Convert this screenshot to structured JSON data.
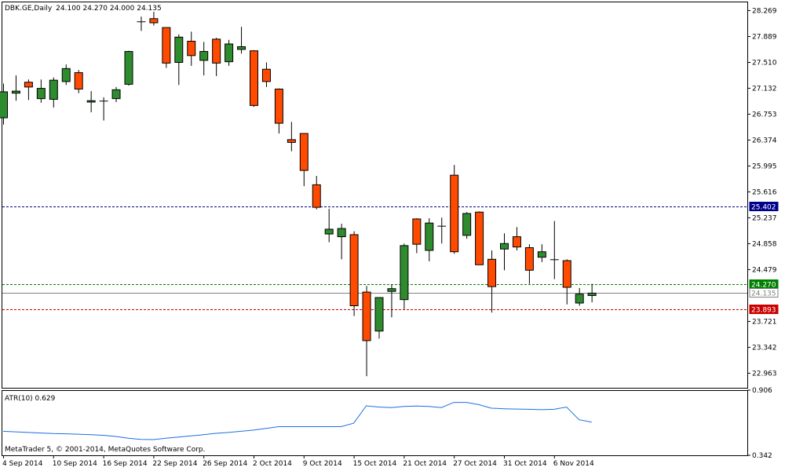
{
  "header": {
    "symbol": "DBK.GE,Daily",
    "quote": "24.100 24.270 24.000 24.135"
  },
  "copyright": "MetaTrader 5, © 2001-2014, MetaQuotes Software Corp.",
  "colors": {
    "bull": "#2e8b2e",
    "bear": "#ff4a00",
    "wick": "#000000",
    "atr_line": "#1e6fe0",
    "resistance": "#00008b",
    "ask": "#008000",
    "bid": "#808080",
    "support": "#cc0000"
  },
  "chart_data": [
    {
      "type": "candlestick",
      "title": "DBK.GE,Daily",
      "ylim": [
        22.75,
        28.4
      ],
      "y_ticks": [
        "28.269",
        "27.889",
        "27.510",
        "27.132",
        "26.753",
        "26.374",
        "25.995",
        "25.616",
        "25.237",
        "24.858",
        "24.479",
        "23.721",
        "23.342",
        "22.963"
      ],
      "x_ticks": [
        {
          "index": 0,
          "label": "4 Sep 2014"
        },
        {
          "index": 4,
          "label": "10 Sep 2014"
        },
        {
          "index": 8,
          "label": "16 Sep 2014"
        },
        {
          "index": 12,
          "label": "22 Sep 2014"
        },
        {
          "index": 16,
          "label": "26 Sep 2014"
        },
        {
          "index": 20,
          "label": "2 Oct 2014"
        },
        {
          "index": 24,
          "label": "9 Oct 2014"
        },
        {
          "index": 28,
          "label": "15 Oct 2014"
        },
        {
          "index": 32,
          "label": "21 Oct 2014"
        },
        {
          "index": 36,
          "label": "27 Oct 2014"
        },
        {
          "index": 40,
          "label": "31 Oct 2014"
        },
        {
          "index": 44,
          "label": "6 Nov 2014"
        }
      ],
      "candles": [
        {
          "o": 26.7,
          "h": 27.2,
          "l": 26.6,
          "c": 27.08
        },
        {
          "o": 27.06,
          "h": 27.32,
          "l": 26.95,
          "c": 27.09
        },
        {
          "o": 27.22,
          "h": 27.26,
          "l": 26.96,
          "c": 27.15
        },
        {
          "o": 26.98,
          "h": 27.26,
          "l": 26.92,
          "c": 27.13
        },
        {
          "o": 26.97,
          "h": 27.29,
          "l": 26.85,
          "c": 27.25
        },
        {
          "o": 27.23,
          "h": 27.48,
          "l": 27.18,
          "c": 27.42
        },
        {
          "o": 27.36,
          "h": 27.4,
          "l": 27.06,
          "c": 27.12
        },
        {
          "o": 26.93,
          "h": 27.09,
          "l": 26.78,
          "c": 26.95
        },
        {
          "o": 26.95,
          "h": 27.0,
          "l": 26.66,
          "c": 26.94
        },
        {
          "o": 26.98,
          "h": 27.15,
          "l": 26.93,
          "c": 27.11
        },
        {
          "o": 27.19,
          "h": 27.68,
          "l": 27.17,
          "c": 27.67
        },
        {
          "o": 28.1,
          "h": 28.18,
          "l": 27.97,
          "c": 28.11
        },
        {
          "o": 28.15,
          "h": 28.25,
          "l": 28.05,
          "c": 28.09
        },
        {
          "o": 28.02,
          "h": 28.02,
          "l": 27.43,
          "c": 27.5
        },
        {
          "o": 27.51,
          "h": 27.92,
          "l": 27.18,
          "c": 27.88
        },
        {
          "o": 27.82,
          "h": 27.96,
          "l": 27.46,
          "c": 27.61
        },
        {
          "o": 27.54,
          "h": 27.81,
          "l": 27.32,
          "c": 27.67
        },
        {
          "o": 27.85,
          "h": 27.87,
          "l": 27.31,
          "c": 27.5
        },
        {
          "o": 27.52,
          "h": 27.84,
          "l": 27.46,
          "c": 27.78
        },
        {
          "o": 27.7,
          "h": 28.03,
          "l": 27.64,
          "c": 27.74
        },
        {
          "o": 27.68,
          "h": 27.69,
          "l": 26.86,
          "c": 26.88
        },
        {
          "o": 27.41,
          "h": 27.51,
          "l": 27.15,
          "c": 27.23
        },
        {
          "o": 27.12,
          "h": 27.13,
          "l": 26.47,
          "c": 26.62
        },
        {
          "o": 26.38,
          "h": 26.64,
          "l": 26.21,
          "c": 26.34
        },
        {
          "o": 26.47,
          "h": 26.47,
          "l": 25.7,
          "c": 25.93
        },
        {
          "o": 25.72,
          "h": 25.85,
          "l": 25.36,
          "c": 25.39
        },
        {
          "o": 25.0,
          "h": 25.37,
          "l": 24.88,
          "c": 25.07
        },
        {
          "o": 24.96,
          "h": 25.15,
          "l": 24.63,
          "c": 25.08
        },
        {
          "o": 24.99,
          "h": 25.04,
          "l": 23.8,
          "c": 23.95
        },
        {
          "o": 24.15,
          "h": 24.24,
          "l": 22.92,
          "c": 23.44
        },
        {
          "o": 23.58,
          "h": 24.03,
          "l": 23.47,
          "c": 24.07
        },
        {
          "o": 24.16,
          "h": 24.26,
          "l": 23.78,
          "c": 24.2
        },
        {
          "o": 24.04,
          "h": 24.86,
          "l": 23.9,
          "c": 24.83
        },
        {
          "o": 25.22,
          "h": 25.23,
          "l": 24.72,
          "c": 24.85
        },
        {
          "o": 24.76,
          "h": 25.23,
          "l": 24.6,
          "c": 25.16
        },
        {
          "o": 25.12,
          "h": 25.24,
          "l": 24.86,
          "c": 25.11
        },
        {
          "o": 25.86,
          "h": 26.01,
          "l": 24.71,
          "c": 24.74
        },
        {
          "o": 24.98,
          "h": 25.32,
          "l": 24.93,
          "c": 25.3
        },
        {
          "o": 25.32,
          "h": 25.33,
          "l": 24.55,
          "c": 24.55
        },
        {
          "o": 24.63,
          "h": 24.76,
          "l": 23.85,
          "c": 24.23
        },
        {
          "o": 24.78,
          "h": 25.01,
          "l": 24.47,
          "c": 24.86
        },
        {
          "o": 24.96,
          "h": 25.1,
          "l": 24.76,
          "c": 24.81
        },
        {
          "o": 24.8,
          "h": 24.85,
          "l": 24.27,
          "c": 24.47
        },
        {
          "o": 24.66,
          "h": 24.85,
          "l": 24.59,
          "c": 24.74
        },
        {
          "o": 24.63,
          "h": 25.19,
          "l": 24.34,
          "c": 24.62
        },
        {
          "o": 24.61,
          "h": 24.63,
          "l": 23.97,
          "c": 24.22
        },
        {
          "o": 23.99,
          "h": 24.21,
          "l": 23.95,
          "c": 24.12
        },
        {
          "o": 24.1,
          "h": 24.27,
          "l": 24.0,
          "c": 24.135
        }
      ],
      "hlines": [
        {
          "value": 25.402,
          "label": "25.402",
          "color": "#00008b",
          "style": "dashed",
          "badge": "#00008b"
        },
        {
          "value": 24.27,
          "label": "24.270",
          "color": "#008000",
          "style": "dashed",
          "badge": "#008000"
        },
        {
          "value": 24.135,
          "label": "24.135",
          "color": "#808080",
          "style": "solid",
          "badge": "#808080"
        },
        {
          "value": 23.893,
          "label": "23.893",
          "color": "#cc0000",
          "style": "dashed",
          "badge": "#cc0000"
        }
      ]
    },
    {
      "type": "line",
      "title": "ATR(10) 0.629",
      "ylim": [
        0.342,
        0.906
      ],
      "y_ticks": [
        "0.906",
        "0.342"
      ],
      "values": [
        0.55,
        0.545,
        0.54,
        0.535,
        0.53,
        0.528,
        0.525,
        0.52,
        0.515,
        0.505,
        0.49,
        0.48,
        0.478,
        0.49,
        0.5,
        0.51,
        0.52,
        0.532,
        0.54,
        0.55,
        0.56,
        0.575,
        0.59,
        0.59,
        0.59,
        0.59,
        0.59,
        0.59,
        0.62,
        0.77,
        0.76,
        0.755,
        0.765,
        0.768,
        0.765,
        0.755,
        0.8,
        0.8,
        0.78,
        0.75,
        0.745,
        0.742,
        0.74,
        0.737,
        0.74,
        0.76,
        0.65,
        0.629
      ]
    }
  ]
}
